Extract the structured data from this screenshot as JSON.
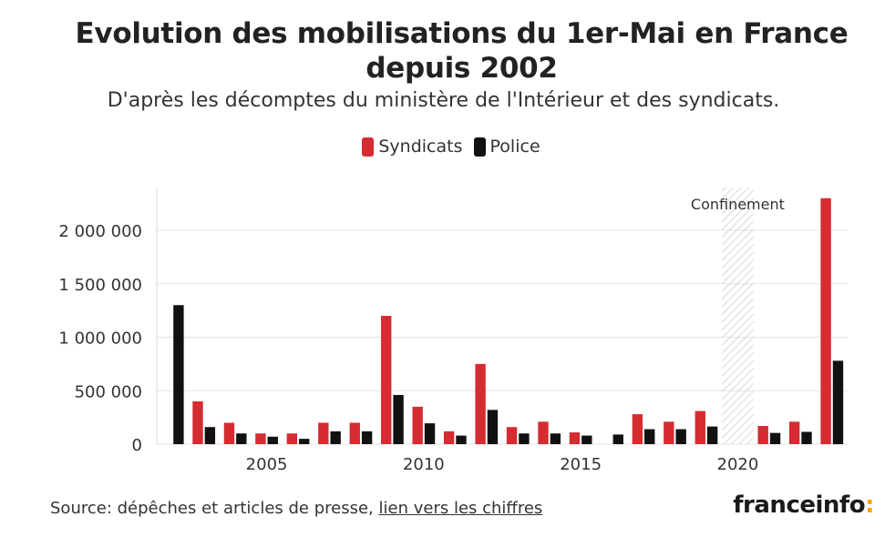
{
  "chart_data": {
    "type": "bar",
    "title": "Evolution des mobilisations du 1er-Mai en France depuis 2002",
    "subtitle": "D'après les décomptes du ministère de l'Intérieur et des syndicats.",
    "x": [
      2002,
      2003,
      2004,
      2005,
      2006,
      2007,
      2008,
      2009,
      2010,
      2011,
      2012,
      2013,
      2014,
      2015,
      2016,
      2017,
      2018,
      2019,
      2020,
      2021,
      2022,
      2023
    ],
    "series": [
      {
        "name": "Syndicats",
        "color": "#d52b31",
        "values": [
          null,
          400000,
          200000,
          100000,
          100000,
          200000,
          200000,
          1200000,
          350000,
          120000,
          750000,
          160000,
          210000,
          110000,
          null,
          280000,
          210000,
          310000,
          null,
          170000,
          210000,
          2300000
        ]
      },
      {
        "name": "Police",
        "color": "#111111",
        "values": [
          1300000,
          160000,
          100000,
          70000,
          50000,
          120000,
          120000,
          460000,
          195000,
          80000,
          320000,
          100000,
          100000,
          80000,
          90000,
          140000,
          140000,
          165000,
          null,
          105000,
          115000,
          780000
        ]
      }
    ],
    "y_ticks": [
      0,
      500000,
      1000000,
      1500000,
      2000000
    ],
    "y_tick_labels": [
      "0",
      "500 000",
      "1 000 000",
      "1 500 000",
      "2 000 000"
    ],
    "x_ticks": [
      2005,
      2010,
      2015,
      2020
    ],
    "x_tick_labels": [
      "2005",
      "2010",
      "2015",
      "2020"
    ],
    "ylim": [
      0,
      2400000
    ],
    "xlim": [
      2001.5,
      2023.5
    ],
    "grid": true,
    "legend_placement": "top-center",
    "annotation": {
      "label": "Confinement",
      "x": 2020
    }
  },
  "footer": {
    "source_prefix": "Source: dépêches et articles de presse, ",
    "source_link": "lien vers les chiffres"
  },
  "logo": {
    "text": "franceinfo",
    "colon": ":"
  }
}
